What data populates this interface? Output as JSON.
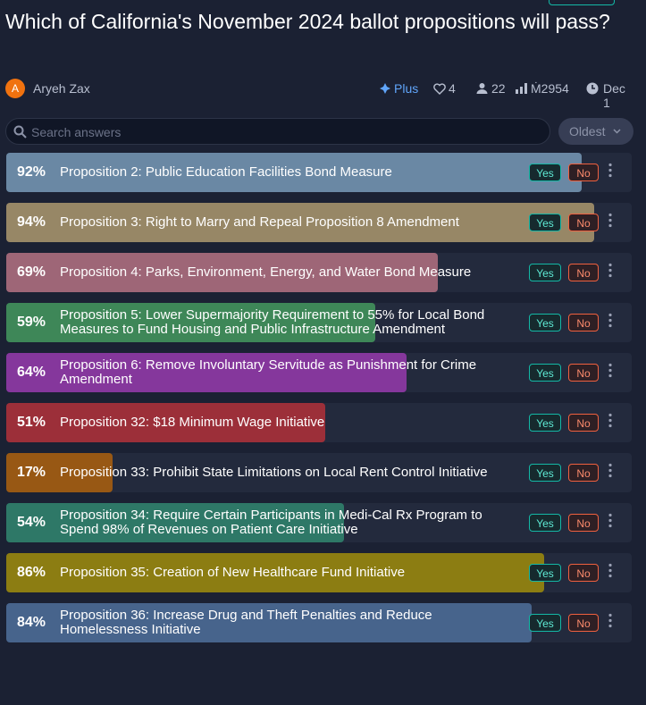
{
  "header": {
    "title": "Which of California's November 2024 ballot propositions will pass?",
    "avatar": "A",
    "author": "Aryeh Zax",
    "plus": "Plus",
    "likes": "4",
    "traders": "22",
    "volume": "Ṁ2954",
    "date": "Dec 1"
  },
  "search": {
    "placeholder": "Search answers",
    "sort": "Oldest"
  },
  "buttons": {
    "yes": "Yes",
    "no": "No"
  },
  "answers": [
    {
      "probability": 92,
      "probability_label": "92%",
      "text": "Proposition 2: Public Education Facilities Bond Measure",
      "color": "#6a88a4"
    },
    {
      "probability": 94,
      "probability_label": "94%",
      "text": "Proposition 3: Right to Marry and Repeal Proposition 8 Amendment",
      "color": "#978766"
    },
    {
      "probability": 69,
      "probability_label": "69%",
      "text": "Proposition 4: Parks, Environment, Energy, and Water Bond Measure",
      "color": "#9e6677"
    },
    {
      "probability": 59,
      "probability_label": "59%",
      "text": "Proposition 5: Lower Supermajority Requirement to 55% for Local Bond Measures to Fund Housing and Public Infrastructure Amendment",
      "color": "#3e8758"
    },
    {
      "probability": 64,
      "probability_label": "64%",
      "text": "Proposition 6: Remove Involuntary Servitude as Punishment for Crime Amendment",
      "color": "#85379c"
    },
    {
      "probability": 51,
      "probability_label": "51%",
      "text": "Proposition 32: $18 Minimum Wage Initiative",
      "color": "#9c2f39"
    },
    {
      "probability": 17,
      "probability_label": "17%",
      "text": "Proposition 33: Prohibit State Limitations on Local Rent Control Initiative",
      "color": "#985814"
    },
    {
      "probability": 54,
      "probability_label": "54%",
      "text": "Proposition 34: Require Certain Participants in Medi-Cal Rx Program to Spend 98% of Revenues on Patient Care Initiative",
      "color": "#2e7867"
    },
    {
      "probability": 86,
      "probability_label": "86%",
      "text": "Proposition 35: Creation of New Healthcare Fund Initiative",
      "color": "#8c7d12"
    },
    {
      "probability": 84,
      "probability_label": "84%",
      "text": "Proposition 36: Increase Drug and Theft Penalties and Reduce Homelessness Initiative",
      "color": "#47648c"
    }
  ]
}
